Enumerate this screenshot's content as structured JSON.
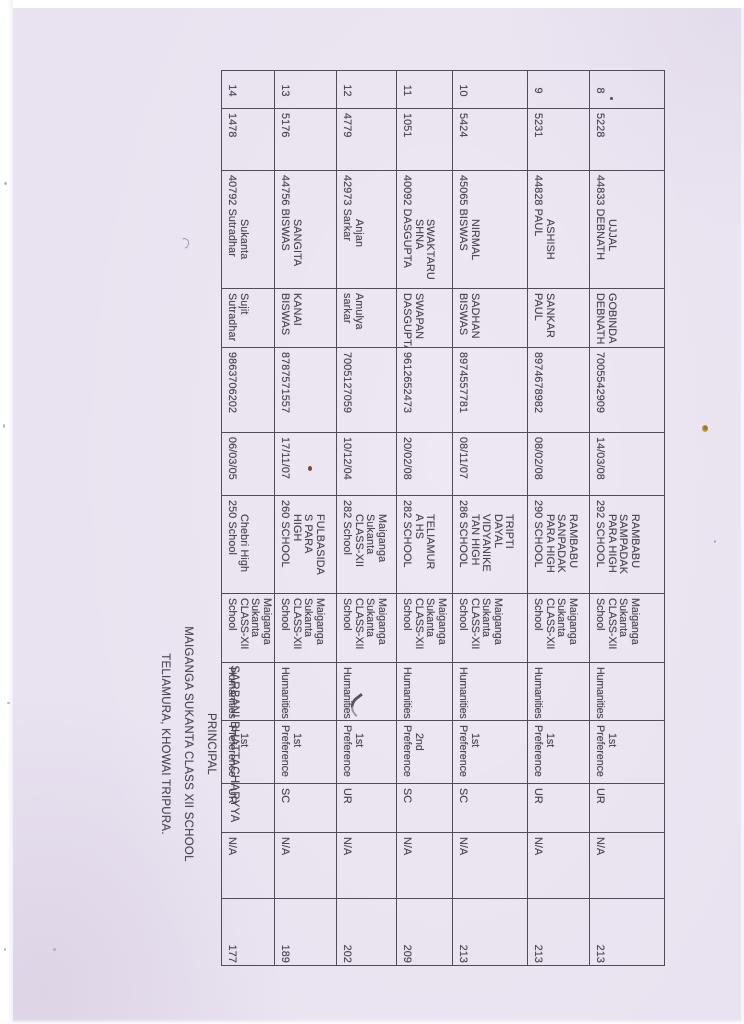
{
  "scan": {
    "paper_color": "#e9e2f0",
    "line_color": "#524c58",
    "text_color": "#4a4450"
  },
  "table": {
    "students": [
      {
        "sl_no": "8",
        "application_no": "5228",
        "name_lines": [
          "UJJAL",
          "44833 DEBNATH"
        ],
        "guardian_lines": [
          "GOBINDA",
          "DEBNATH"
        ],
        "phone": "7005542909",
        "dob": "14/03/08",
        "prev_school_lines": [
          "RAMBABU",
          "SAMPADAK",
          "PARA HIGH",
          "292 SCHOOL"
        ],
        "class12_lines": [
          "Maiganga",
          "Sukanta",
          "CLASS-XII",
          "School"
        ],
        "stream": "Humanities",
        "pref_lines": [
          "1st",
          "Preference"
        ],
        "category": "UR",
        "availability": "N/A",
        "rank": "213"
      },
      {
        "sl_no": "9",
        "application_no": "5231",
        "name_lines": [
          "ASHISH",
          "44828 PAUL"
        ],
        "guardian_lines": [
          "SANKAR",
          "PAUL"
        ],
        "phone": "8974678982",
        "dob": "08/02/08",
        "prev_school_lines": [
          "RAMBABU",
          "SANPADAK",
          "PARA HIGH",
          "290 SCHOOL"
        ],
        "class12_lines": [
          "Maiganga",
          "Sukanta",
          "CLASS-XII",
          "School"
        ],
        "stream": "Humanities",
        "pref_lines": [
          "1st",
          "Preference"
        ],
        "category": "UR",
        "availability": "N/A",
        "rank": "213"
      },
      {
        "sl_no": "10",
        "application_no": "5424",
        "name_lines": [
          "NIRMAL",
          "45065 BISWAS"
        ],
        "guardian_lines": [
          "SADHAN",
          "BISWAS"
        ],
        "phone": "8974557781",
        "dob": "08/11/07",
        "prev_school_lines": [
          "TRIPTI",
          "DAYAL",
          "VIDYANIKE",
          "TAN HIGH",
          "286 SCHOOL"
        ],
        "class12_lines": [
          "Maiganga",
          "Sukanta",
          "CLASS-XII",
          "School"
        ],
        "stream": "Humanities",
        "pref_lines": [
          "1st",
          "Preference"
        ],
        "category": "SC",
        "availability": "N/A",
        "rank": "213"
      },
      {
        "sl_no": "11",
        "application_no": "1051",
        "name_lines": [
          "SWAKTARU",
          "SHNA",
          "40092 DASGUPTA"
        ],
        "guardian_lines": [
          "SWAPAN",
          "DASGUPTA"
        ],
        "phone": "9612652473",
        "dob": "20/02/08",
        "prev_school_lines": [
          "TELIAMUR",
          "A HS",
          "282 SCHOOL"
        ],
        "class12_lines": [
          "Maiganga",
          "Sukanta",
          "CLASS-XII",
          "School"
        ],
        "stream": "Humanities",
        "pref_lines": [
          "2nd",
          "Preference"
        ],
        "category": "SC",
        "availability": "N/A",
        "rank": "209"
      },
      {
        "sl_no": "12",
        "application_no": "4779",
        "name_lines": [
          "Anjan",
          "42973 Sarkar"
        ],
        "guardian_lines": [
          "Amulya",
          "sarkar"
        ],
        "phone": "7005127059",
        "dob": "10/12/04",
        "prev_school_lines": [
          "Maiganga",
          "Sukanta",
          "CLASS-XII",
          "282 School"
        ],
        "class12_lines": [
          "Maiganga",
          "Sukanta",
          "CLASS-XII",
          "School"
        ],
        "stream": "Humanities",
        "pref_lines": [
          "1st",
          "Preference"
        ],
        "category": "UR",
        "availability": "N/A",
        "rank": "202"
      },
      {
        "sl_no": "13",
        "application_no": "5176",
        "name_lines": [
          "SANGITA",
          "44756 BISWAS"
        ],
        "guardian_lines": [
          "KANAI",
          "BISWAS"
        ],
        "phone": "8787571557",
        "dob": "17/11/07",
        "prev_school_lines": [
          "FULBASIDA",
          "S PARA",
          "HIGH",
          "260 SCHOOL"
        ],
        "class12_lines": [
          "Maiganga",
          "Sukanta",
          "CLASS-XII",
          "School"
        ],
        "stream": "Humanities",
        "pref_lines": [
          "1st",
          "Preference"
        ],
        "category": "SC",
        "availability": "N/A",
        "rank": "189"
      },
      {
        "sl_no": "14",
        "application_no": "1478",
        "name_lines": [
          "Sukanta",
          "40792 Sutradhar"
        ],
        "guardian_lines": [
          "Sujit",
          "Sutradhar"
        ],
        "phone": "9863706202",
        "dob": "06/03/05",
        "prev_school_lines": [
          "Chebri High",
          "250 School"
        ],
        "class12_lines": [
          "Maiganga",
          "Sukanta",
          "CLASS-XII",
          "School"
        ],
        "stream": "Humanities",
        "pref_lines": [
          "1st",
          "Preference"
        ],
        "category": "UR",
        "availability": "N/A",
        "rank": "177"
      }
    ]
  },
  "signature": {
    "lines": [
      "SARBANI BHATTACHARYYA",
      "PRINCIPAL",
      "MAIGANGA SUKANTA CLASS XII SCHOOL",
      "TELIAMURA, KHOWAI TRIPURA."
    ]
  }
}
